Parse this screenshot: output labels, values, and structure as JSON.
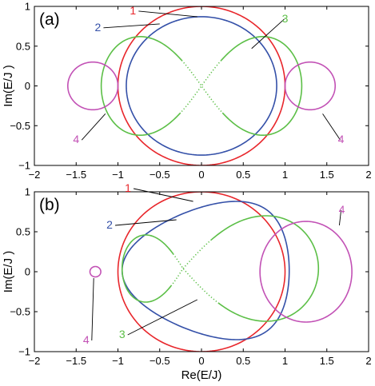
{
  "colors": {
    "1": "#e8262b",
    "2": "#3450a8",
    "3": "#5cbf47",
    "4": "#c251b5"
  },
  "chart_data": [
    {
      "type": "line",
      "panel_label": "(a)",
      "xlabel": "",
      "ylabel": "Im(E/J )",
      "xlim": [
        -2,
        2
      ],
      "ylim": [
        -1,
        1
      ],
      "xticks": [
        -2,
        -1.5,
        -1,
        -0.5,
        0,
        0.5,
        1,
        1.5,
        2
      ],
      "xtick_labels": [
        "−2",
        "−1.5",
        "−1",
        "−0.5",
        "0",
        "0.5",
        "1",
        "1.5",
        "2"
      ],
      "yticks": [
        -1,
        -0.5,
        0,
        0.5,
        1
      ],
      "ytick_labels": [
        "−1",
        "−0.5",
        "0",
        "0.5",
        "1"
      ],
      "series": [
        {
          "label": "1",
          "shape": "ellipse",
          "center": [
            0,
            0
          ],
          "radii": [
            1,
            1
          ]
        },
        {
          "label": "2",
          "shape": "ellipse",
          "center": [
            0,
            0
          ],
          "radii": [
            0.9,
            0.87
          ]
        },
        {
          "label": "3",
          "shape": "figure-eight",
          "x_extent": [
            -1.2,
            1.2
          ],
          "y_extent": [
            -0.62,
            0.62
          ]
        },
        {
          "label": "4",
          "shape": "ellipse",
          "center": [
            -1.3,
            0
          ],
          "radii": [
            0.3,
            0.3
          ]
        },
        {
          "label": "4",
          "shape": "ellipse",
          "center": [
            1.3,
            0
          ],
          "radii": [
            0.3,
            0.3
          ]
        }
      ],
      "annotations": [
        {
          "text": "1",
          "series": 0,
          "text_at": [
            -0.82,
            0.9
          ],
          "point_at": [
            -0.05,
            0.87
          ]
        },
        {
          "text": "2",
          "series": 1,
          "text_at": [
            -1.24,
            0.69
          ],
          "point_at": [
            -0.5,
            0.78
          ]
        },
        {
          "text": "3",
          "series": 2,
          "text_at": [
            1.0,
            0.8
          ],
          "point_at": [
            0.6,
            0.47
          ]
        },
        {
          "text": "4",
          "series": 3,
          "text_at": [
            -1.5,
            -0.72
          ],
          "point_at": [
            -1.15,
            -0.35
          ]
        },
        {
          "text": "4",
          "series": 4,
          "text_at": [
            1.67,
            -0.72
          ],
          "point_at": [
            1.45,
            -0.35
          ]
        }
      ]
    },
    {
      "type": "line",
      "panel_label": "(b)",
      "xlabel": "Re(E/J)",
      "ylabel": "Im(E/J )",
      "xlim": [
        -2,
        2
      ],
      "ylim": [
        -1,
        1
      ],
      "xticks": [
        -2,
        -1.5,
        -1,
        -0.5,
        0,
        0.5,
        1,
        1.5,
        2
      ],
      "xtick_labels": [
        "−2",
        "−1.5",
        "−1",
        "−0.5",
        "0",
        "0.5",
        "1",
        "1.5",
        "2"
      ],
      "yticks": [
        -1,
        -0.5,
        0,
        0.5,
        1
      ],
      "ytick_labels": [
        "−1",
        "−0.5",
        "0",
        "0.5",
        "1"
      ],
      "series": [
        {
          "label": "1",
          "shape": "ellipse",
          "center": [
            0,
            0
          ],
          "radii": [
            1,
            1
          ]
        },
        {
          "label": "2",
          "shape": "closed-loop",
          "x_extent": [
            -0.95,
            1.05
          ],
          "y_extent": [
            -0.85,
            0.88
          ]
        },
        {
          "label": "3",
          "shape": "figure-eight",
          "x_extent": [
            -0.95,
            1.4
          ],
          "y_extent": [
            -0.62,
            0.7
          ]
        },
        {
          "label": "4",
          "shape": "ellipse",
          "center": [
            -1.27,
            0
          ],
          "radii": [
            0.065,
            0.065
          ]
        },
        {
          "label": "4",
          "shape": "ellipse",
          "center": [
            1.25,
            0
          ],
          "radii": [
            0.55,
            0.63
          ]
        }
      ],
      "annotations": [
        {
          "text": "1",
          "series": 0,
          "text_at": [
            -0.88,
            1.0
          ],
          "point_at": [
            -0.1,
            0.88
          ]
        },
        {
          "text": "2",
          "series": 1,
          "text_at": [
            -1.1,
            0.54
          ],
          "point_at": [
            -0.3,
            0.65
          ]
        },
        {
          "text": "3",
          "series": 2,
          "text_at": [
            -0.95,
            -0.83
          ],
          "point_at": [
            -0.05,
            -0.35
          ]
        },
        {
          "text": "4",
          "series": 3,
          "text_at": [
            -1.38,
            -0.9
          ],
          "point_at": [
            -1.29,
            -0.08
          ]
        },
        {
          "text": "4",
          "series": 4,
          "text_at": [
            1.68,
            0.73
          ],
          "point_at": [
            1.65,
            0.58
          ]
        }
      ]
    }
  ]
}
